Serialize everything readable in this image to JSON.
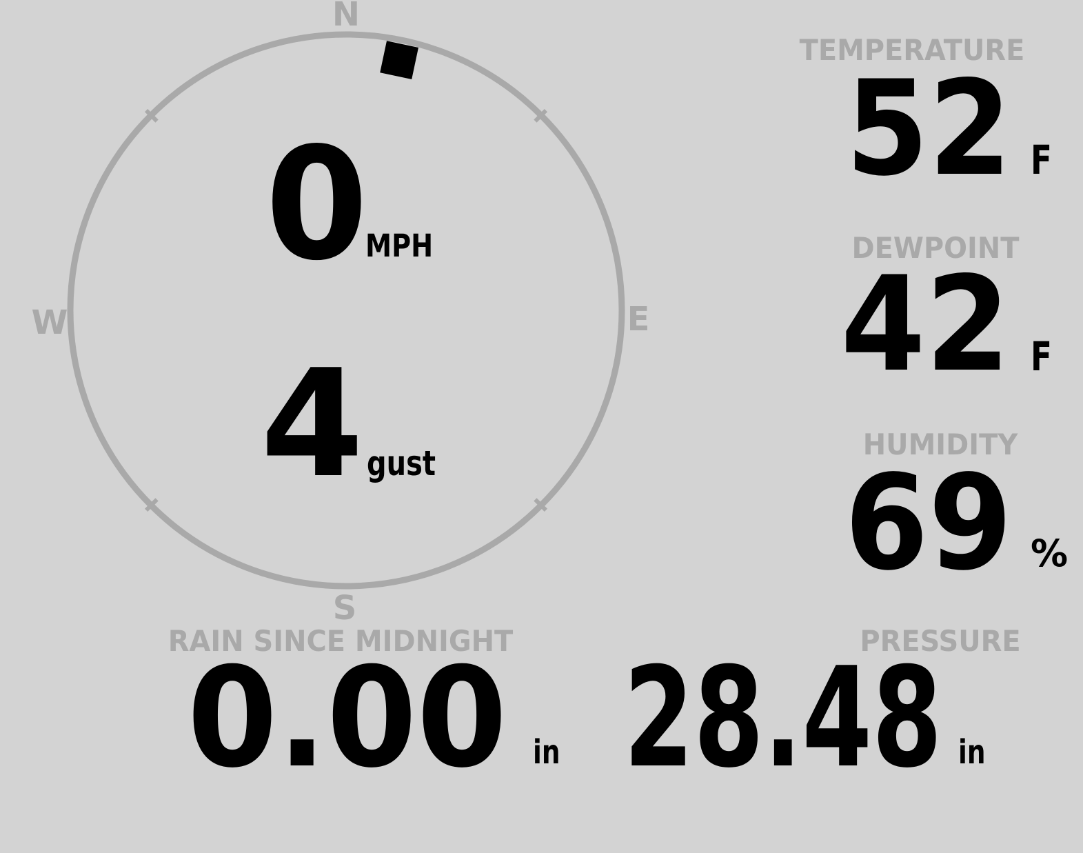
{
  "colors": {
    "background": "#d3d3d3",
    "muted_gray": "#a9a9a9",
    "value_black": "#000000"
  },
  "wind": {
    "speed_value": "0",
    "speed_unit": "MPH",
    "gust_value": "4",
    "gust_label": "gust",
    "direction_deg": 12,
    "compass_labels": {
      "north": "N",
      "east": "E",
      "south": "S",
      "west": "W"
    }
  },
  "temperature": {
    "label": "TEMPERATURE",
    "value": "52",
    "unit": "F"
  },
  "dewpoint": {
    "label": "DEWPOINT",
    "value": "42",
    "unit": "F"
  },
  "humidity": {
    "label": "HUMIDITY",
    "value": "69",
    "unit": "%"
  },
  "rain_since_midnight": {
    "label": "RAIN SINCE MIDNIGHT",
    "value": "0.00",
    "unit": "in"
  },
  "pressure": {
    "label": "PRESSURE",
    "value": "28.48",
    "unit": "in"
  }
}
